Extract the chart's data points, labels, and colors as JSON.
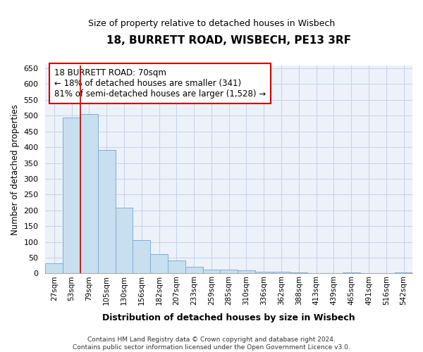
{
  "title": "18, BURRETT ROAD, WISBECH, PE13 3RF",
  "subtitle": "Size of property relative to detached houses in Wisbech",
  "xlabel": "Distribution of detached houses by size in Wisbech",
  "ylabel": "Number of detached properties",
  "bar_color": "#c8dff0",
  "bar_edge_color": "#7bafd4",
  "bin_labels": [
    "27sqm",
    "53sqm",
    "79sqm",
    "105sqm",
    "130sqm",
    "156sqm",
    "182sqm",
    "207sqm",
    "233sqm",
    "259sqm",
    "285sqm",
    "310sqm",
    "336sqm",
    "362sqm",
    "388sqm",
    "413sqm",
    "439sqm",
    "465sqm",
    "491sqm",
    "516sqm",
    "542sqm"
  ],
  "bar_heights": [
    33,
    493,
    505,
    391,
    208,
    106,
    61,
    41,
    22,
    12,
    12,
    10,
    5,
    5,
    4,
    0,
    0,
    4,
    0,
    1,
    4
  ],
  "ylim": [
    0,
    660
  ],
  "yticks": [
    0,
    50,
    100,
    150,
    200,
    250,
    300,
    350,
    400,
    450,
    500,
    550,
    600,
    650
  ],
  "annotation_text": "18 BURRETT ROAD: 70sqm\n← 18% of detached houses are smaller (341)\n81% of semi-detached houses are larger (1,528) →",
  "annotation_box_color": "#ffffff",
  "annotation_box_edge": "#cc0000",
  "footer_text": "Contains HM Land Registry data © Crown copyright and database right 2024.\nContains public sector information licensed under the Open Government Licence v3.0.",
  "grid_color": "#c8d4e8",
  "background_color": "#edf2fa"
}
